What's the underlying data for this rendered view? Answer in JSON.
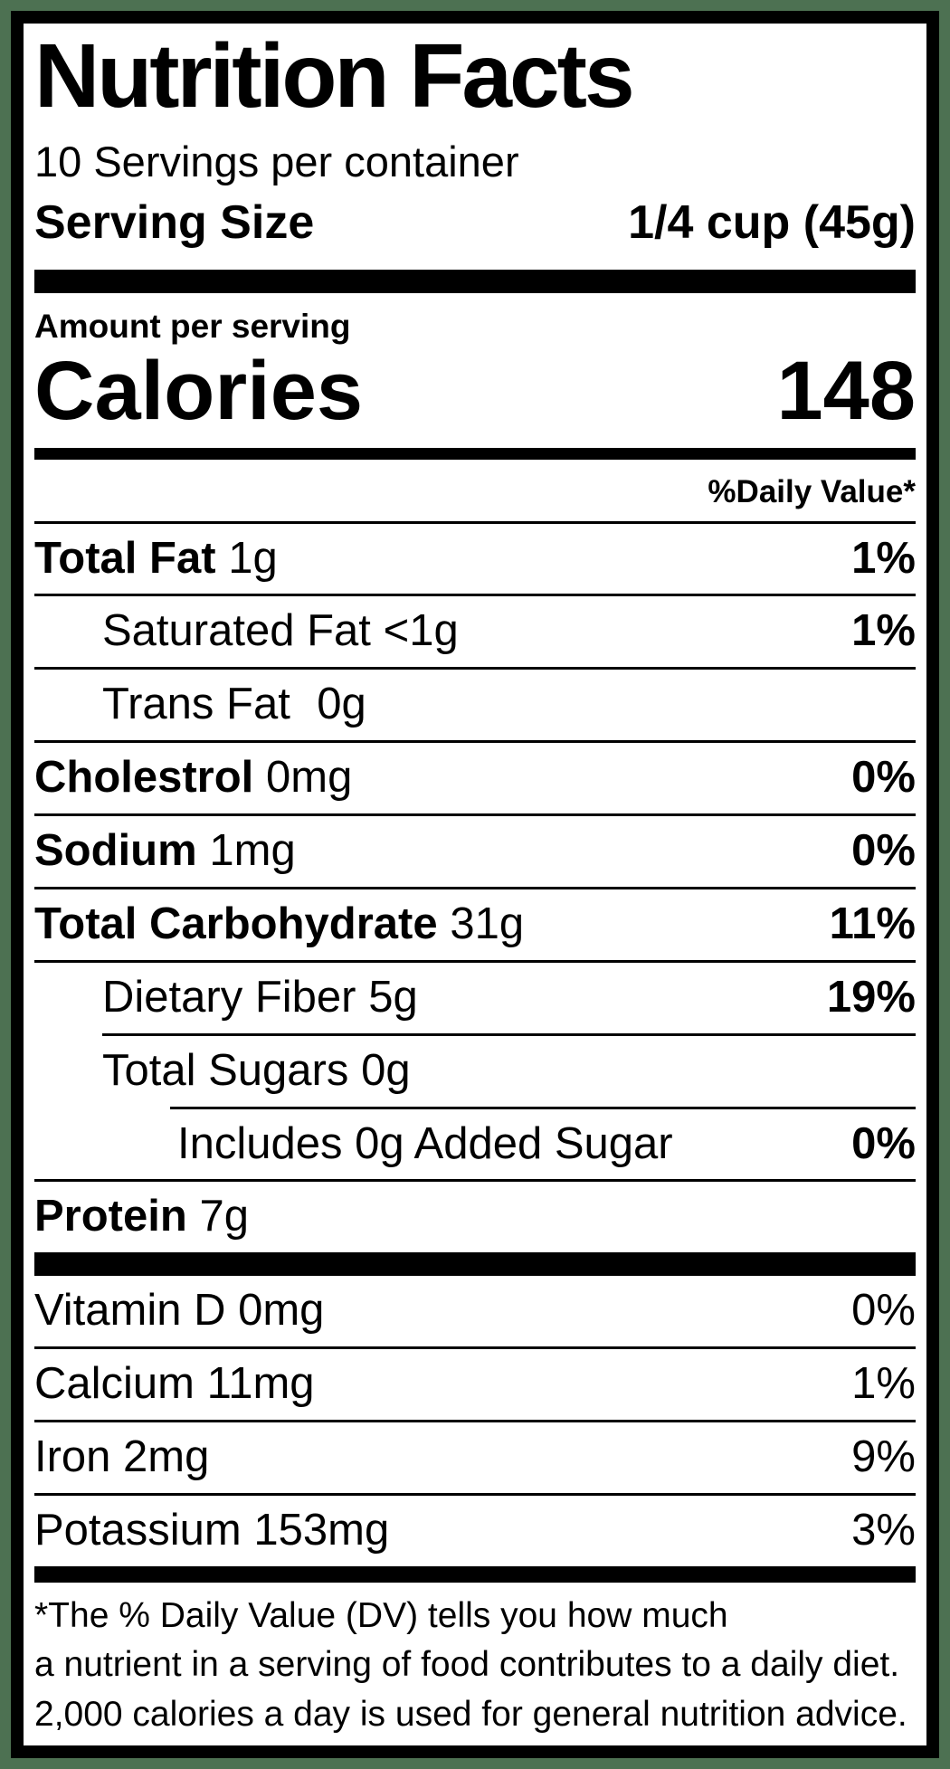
{
  "colors": {
    "frame_green": "#4d7152",
    "border_black": "#000000",
    "background_white": "#ffffff"
  },
  "label": {
    "title": "Nutrition Facts",
    "servings_per_container": "10 Servings per container",
    "serving_size_label": "Serving Size",
    "serving_size_value": "1/4 cup (45g)",
    "amount_per_serving": "Amount per serving",
    "calories_label": "Calories",
    "calories_value": "148",
    "daily_value_header": "%Daily Value*",
    "nutrients": [
      {
        "name": "Total Fat",
        "amount": "1g",
        "dv": "1%"
      },
      {
        "name": "Saturated Fat",
        "amount": "<1g",
        "dv": "1%"
      },
      {
        "name": "Trans Fat",
        "amount": "0g",
        "dv": ""
      },
      {
        "name": "Cholestrol",
        "amount": "0mg",
        "dv": "0%"
      },
      {
        "name": "Sodium",
        "amount": "1mg",
        "dv": "0%"
      },
      {
        "name": "Total Carbohydrate",
        "amount": "31g",
        "dv": "11%"
      },
      {
        "name": "Dietary Fiber",
        "amount": "5g",
        "dv": "19%"
      },
      {
        "name": "Total Sugars",
        "amount": "0g",
        "dv": ""
      },
      {
        "name": "Includes 0g Added Sugar",
        "amount": "",
        "dv": "0%"
      },
      {
        "name": "Protein",
        "amount": "7g",
        "dv": ""
      }
    ],
    "micronutrients": [
      {
        "name": "Vitamin D 0mg",
        "dv": "0%"
      },
      {
        "name": "Calcium 11mg",
        "dv": "1%"
      },
      {
        "name": "Iron 2mg",
        "dv": "9%"
      },
      {
        "name": "Potassium 153mg",
        "dv": "3%"
      }
    ],
    "footnote_lines": [
      "*The % Daily Value (DV) tells you how much",
      "a nutrient in a serving of food contributes to a daily diet.",
      "2,000 calories a day is used for general nutrition advice."
    ]
  }
}
